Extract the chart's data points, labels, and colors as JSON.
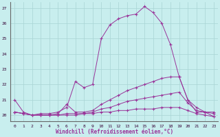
{
  "background_color": "#c8eeee",
  "grid_color": "#a8d4d4",
  "line_color": "#993399",
  "xlabel": "Windchill (Refroidissement éolien,°C)",
  "ylabel_ticks": [
    20,
    21,
    22,
    23,
    24,
    25,
    26,
    27
  ],
  "xticks": [
    0,
    1,
    2,
    3,
    4,
    5,
    6,
    7,
    8,
    9,
    10,
    11,
    12,
    13,
    14,
    15,
    16,
    17,
    18,
    19,
    20,
    21,
    22,
    23
  ],
  "xlim": [
    -0.5,
    23.5
  ],
  "ylim": [
    19.6,
    27.4
  ],
  "series1_x": [
    0,
    1,
    2,
    3,
    4,
    5,
    6,
    7,
    8,
    9,
    10,
    11,
    12,
    13,
    14,
    15,
    16,
    17,
    18,
    19,
    20,
    21,
    22,
    23
  ],
  "series1_y": [
    21.0,
    20.2,
    20.0,
    20.1,
    20.1,
    20.2,
    20.5,
    22.2,
    21.8,
    22.0,
    25.0,
    25.9,
    26.3,
    26.5,
    26.6,
    27.1,
    26.7,
    26.0,
    24.6,
    22.5,
    21.0,
    20.2,
    20.2,
    19.9
  ],
  "series2_x": [
    0,
    1,
    2,
    3,
    4,
    5,
    6,
    7,
    8,
    9,
    10,
    11,
    12,
    13,
    14,
    15,
    16,
    17,
    18,
    19,
    20,
    21,
    22,
    23
  ],
  "series2_y": [
    20.2,
    20.1,
    20.0,
    20.0,
    20.0,
    20.1,
    20.7,
    20.2,
    20.2,
    20.3,
    20.7,
    21.0,
    21.3,
    21.6,
    21.8,
    22.0,
    22.2,
    22.4,
    22.5,
    22.5,
    21.0,
    20.5,
    20.2,
    20.2
  ],
  "series3_x": [
    0,
    1,
    2,
    3,
    4,
    5,
    6,
    7,
    8,
    9,
    10,
    11,
    12,
    13,
    14,
    15,
    16,
    17,
    18,
    19,
    20,
    21,
    22,
    23
  ],
  "series3_y": [
    20.2,
    20.1,
    20.0,
    20.0,
    20.0,
    20.0,
    20.1,
    20.1,
    20.1,
    20.2,
    20.4,
    20.5,
    20.7,
    20.9,
    21.0,
    21.1,
    21.2,
    21.3,
    21.4,
    21.5,
    20.8,
    20.3,
    20.2,
    20.1
  ],
  "series4_x": [
    0,
    1,
    2,
    3,
    4,
    5,
    6,
    7,
    8,
    9,
    10,
    11,
    12,
    13,
    14,
    15,
    16,
    17,
    18,
    19,
    20,
    21,
    22,
    23
  ],
  "series4_y": [
    20.2,
    20.1,
    20.0,
    20.0,
    20.0,
    20.0,
    20.0,
    20.0,
    20.1,
    20.1,
    20.2,
    20.2,
    20.3,
    20.3,
    20.4,
    20.4,
    20.4,
    20.5,
    20.5,
    20.5,
    20.3,
    20.1,
    20.0,
    19.9
  ]
}
